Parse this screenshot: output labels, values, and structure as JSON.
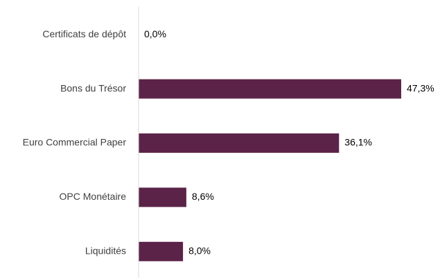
{
  "chart_data": {
    "type": "bar",
    "orientation": "horizontal",
    "categories": [
      "Certificats de dépôt",
      "Bons du Trésor",
      "Euro Commercial Paper",
      "OPC Monétaire",
      "Liquidités"
    ],
    "values": [
      0.0,
      47.3,
      36.1,
      8.6,
      8.0
    ],
    "value_labels": [
      "0,0%",
      "47,3%",
      "36,1%",
      "8,6%",
      "8,0%"
    ],
    "bar_color": "#5c2349",
    "axis_color": "#d9d9d9",
    "xlim": [
      0,
      47.3
    ],
    "grid": false,
    "legend": "none"
  }
}
